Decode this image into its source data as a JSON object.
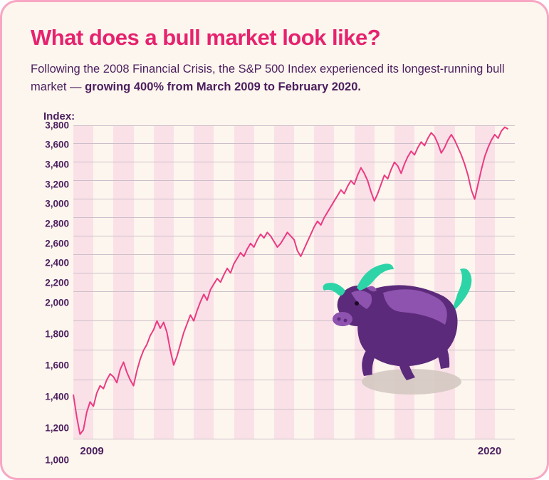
{
  "title": "What does a bull market look like?",
  "subtitle_plain": "Following the 2008 Financial Crisis, the S&P 500 Index experienced its longest-running bull market — ",
  "subtitle_bold": "growing 400% from March 2009 to February 2020.",
  "ylabel": "Index:",
  "chart": {
    "type": "line",
    "background_color": "#fdf6ee",
    "band_color": "#fae1e8",
    "grid_color": "#cdbfc9",
    "line_color": "#ec3a82",
    "line_width": 2,
    "title_color": "#e6226e",
    "text_color": "#4b1e5e",
    "ylim": [
      1000,
      3800
    ],
    "yticks": [
      3800,
      3600,
      3400,
      3200,
      3000,
      2800,
      2600,
      2400,
      2200,
      2000,
      1800,
      1600,
      1400,
      1200,
      1000
    ],
    "ytick_labels": [
      "3,800",
      "3,600",
      "3,400",
      "3,200",
      "3,000",
      "2,800",
      "2,600",
      "2,400",
      "2,200",
      "2,000",
      "1,800",
      "1,600",
      "1,400",
      "1,200",
      "1,000"
    ],
    "xlim": [
      0,
      132
    ],
    "xticks": [
      {
        "pos": 2,
        "label": "2009"
      },
      {
        "pos": 128,
        "label": "2020"
      }
    ],
    "num_bands": 22,
    "series": [
      {
        "x": 0,
        "y": 1300
      },
      {
        "x": 1,
        "y": 1150
      },
      {
        "x": 2,
        "y": 1030
      },
      {
        "x": 3,
        "y": 1060
      },
      {
        "x": 4,
        "y": 1180
      },
      {
        "x": 5,
        "y": 1250
      },
      {
        "x": 6,
        "y": 1220
      },
      {
        "x": 7,
        "y": 1310
      },
      {
        "x": 8,
        "y": 1360
      },
      {
        "x": 9,
        "y": 1340
      },
      {
        "x": 10,
        "y": 1400
      },
      {
        "x": 11,
        "y": 1440
      },
      {
        "x": 12,
        "y": 1420
      },
      {
        "x": 13,
        "y": 1380
      },
      {
        "x": 14,
        "y": 1470
      },
      {
        "x": 15,
        "y": 1520
      },
      {
        "x": 16,
        "y": 1450
      },
      {
        "x": 17,
        "y": 1400
      },
      {
        "x": 18,
        "y": 1360
      },
      {
        "x": 19,
        "y": 1460
      },
      {
        "x": 20,
        "y": 1540
      },
      {
        "x": 21,
        "y": 1600
      },
      {
        "x": 22,
        "y": 1640
      },
      {
        "x": 23,
        "y": 1700
      },
      {
        "x": 24,
        "y": 1740
      },
      {
        "x": 25,
        "y": 1800
      },
      {
        "x": 26,
        "y": 1750
      },
      {
        "x": 27,
        "y": 1790
      },
      {
        "x": 28,
        "y": 1720
      },
      {
        "x": 29,
        "y": 1600
      },
      {
        "x": 30,
        "y": 1500
      },
      {
        "x": 31,
        "y": 1560
      },
      {
        "x": 32,
        "y": 1640
      },
      {
        "x": 33,
        "y": 1720
      },
      {
        "x": 34,
        "y": 1780
      },
      {
        "x": 35,
        "y": 1840
      },
      {
        "x": 36,
        "y": 1800
      },
      {
        "x": 37,
        "y": 1870
      },
      {
        "x": 38,
        "y": 1930
      },
      {
        "x": 39,
        "y": 1980
      },
      {
        "x": 40,
        "y": 1940
      },
      {
        "x": 41,
        "y": 2020
      },
      {
        "x": 42,
        "y": 2080
      },
      {
        "x": 43,
        "y": 2140
      },
      {
        "x": 44,
        "y": 2100
      },
      {
        "x": 45,
        "y": 2180
      },
      {
        "x": 46,
        "y": 2250
      },
      {
        "x": 47,
        "y": 2200
      },
      {
        "x": 48,
        "y": 2300
      },
      {
        "x": 49,
        "y": 2360
      },
      {
        "x": 50,
        "y": 2420
      },
      {
        "x": 51,
        "y": 2380
      },
      {
        "x": 52,
        "y": 2460
      },
      {
        "x": 53,
        "y": 2520
      },
      {
        "x": 54,
        "y": 2480
      },
      {
        "x": 55,
        "y": 2560
      },
      {
        "x": 56,
        "y": 2620
      },
      {
        "x": 57,
        "y": 2580
      },
      {
        "x": 58,
        "y": 2640
      },
      {
        "x": 59,
        "y": 2600
      },
      {
        "x": 60,
        "y": 2540
      },
      {
        "x": 61,
        "y": 2480
      },
      {
        "x": 62,
        "y": 2520
      },
      {
        "x": 63,
        "y": 2580
      },
      {
        "x": 64,
        "y": 2640
      },
      {
        "x": 65,
        "y": 2600
      },
      {
        "x": 66,
        "y": 2560
      },
      {
        "x": 67,
        "y": 2440
      },
      {
        "x": 68,
        "y": 2380
      },
      {
        "x": 69,
        "y": 2460
      },
      {
        "x": 70,
        "y": 2540
      },
      {
        "x": 71,
        "y": 2620
      },
      {
        "x": 72,
        "y": 2700
      },
      {
        "x": 73,
        "y": 2760
      },
      {
        "x": 74,
        "y": 2720
      },
      {
        "x": 75,
        "y": 2800
      },
      {
        "x": 76,
        "y": 2860
      },
      {
        "x": 77,
        "y": 2920
      },
      {
        "x": 78,
        "y": 2980
      },
      {
        "x": 79,
        "y": 3040
      },
      {
        "x": 80,
        "y": 3100
      },
      {
        "x": 81,
        "y": 3060
      },
      {
        "x": 82,
        "y": 3140
      },
      {
        "x": 83,
        "y": 3200
      },
      {
        "x": 84,
        "y": 3160
      },
      {
        "x": 85,
        "y": 3260
      },
      {
        "x": 86,
        "y": 3340
      },
      {
        "x": 87,
        "y": 3280
      },
      {
        "x": 88,
        "y": 3200
      },
      {
        "x": 89,
        "y": 3080
      },
      {
        "x": 90,
        "y": 2980
      },
      {
        "x": 91,
        "y": 3060
      },
      {
        "x": 92,
        "y": 3160
      },
      {
        "x": 93,
        "y": 3260
      },
      {
        "x": 94,
        "y": 3220
      },
      {
        "x": 95,
        "y": 3320
      },
      {
        "x": 96,
        "y": 3400
      },
      {
        "x": 97,
        "y": 3360
      },
      {
        "x": 98,
        "y": 3280
      },
      {
        "x": 99,
        "y": 3380
      },
      {
        "x": 100,
        "y": 3460
      },
      {
        "x": 101,
        "y": 3520
      },
      {
        "x": 102,
        "y": 3480
      },
      {
        "x": 103,
        "y": 3560
      },
      {
        "x": 104,
        "y": 3620
      },
      {
        "x": 105,
        "y": 3580
      },
      {
        "x": 106,
        "y": 3660
      },
      {
        "x": 107,
        "y": 3720
      },
      {
        "x": 108,
        "y": 3680
      },
      {
        "x": 109,
        "y": 3600
      },
      {
        "x": 110,
        "y": 3500
      },
      {
        "x": 111,
        "y": 3560
      },
      {
        "x": 112,
        "y": 3640
      },
      {
        "x": 113,
        "y": 3700
      },
      {
        "x": 114,
        "y": 3640
      },
      {
        "x": 115,
        "y": 3560
      },
      {
        "x": 116,
        "y": 3480
      },
      {
        "x": 117,
        "y": 3380
      },
      {
        "x": 118,
        "y": 3260
      },
      {
        "x": 119,
        "y": 3100
      },
      {
        "x": 120,
        "y": 3000
      },
      {
        "x": 121,
        "y": 3160
      },
      {
        "x": 122,
        "y": 3320
      },
      {
        "x": 123,
        "y": 3460
      },
      {
        "x": 124,
        "y": 3560
      },
      {
        "x": 125,
        "y": 3640
      },
      {
        "x": 126,
        "y": 3700
      },
      {
        "x": 127,
        "y": 3660
      },
      {
        "x": 128,
        "y": 3740
      },
      {
        "x": 129,
        "y": 3780
      },
      {
        "x": 130,
        "y": 3760
      }
    ]
  },
  "bull": {
    "body_color": "#5c2a7a",
    "highlight_color": "#8e52af",
    "horn_color": "#2dd4a7",
    "shadow_color": "#d4c9c2"
  }
}
